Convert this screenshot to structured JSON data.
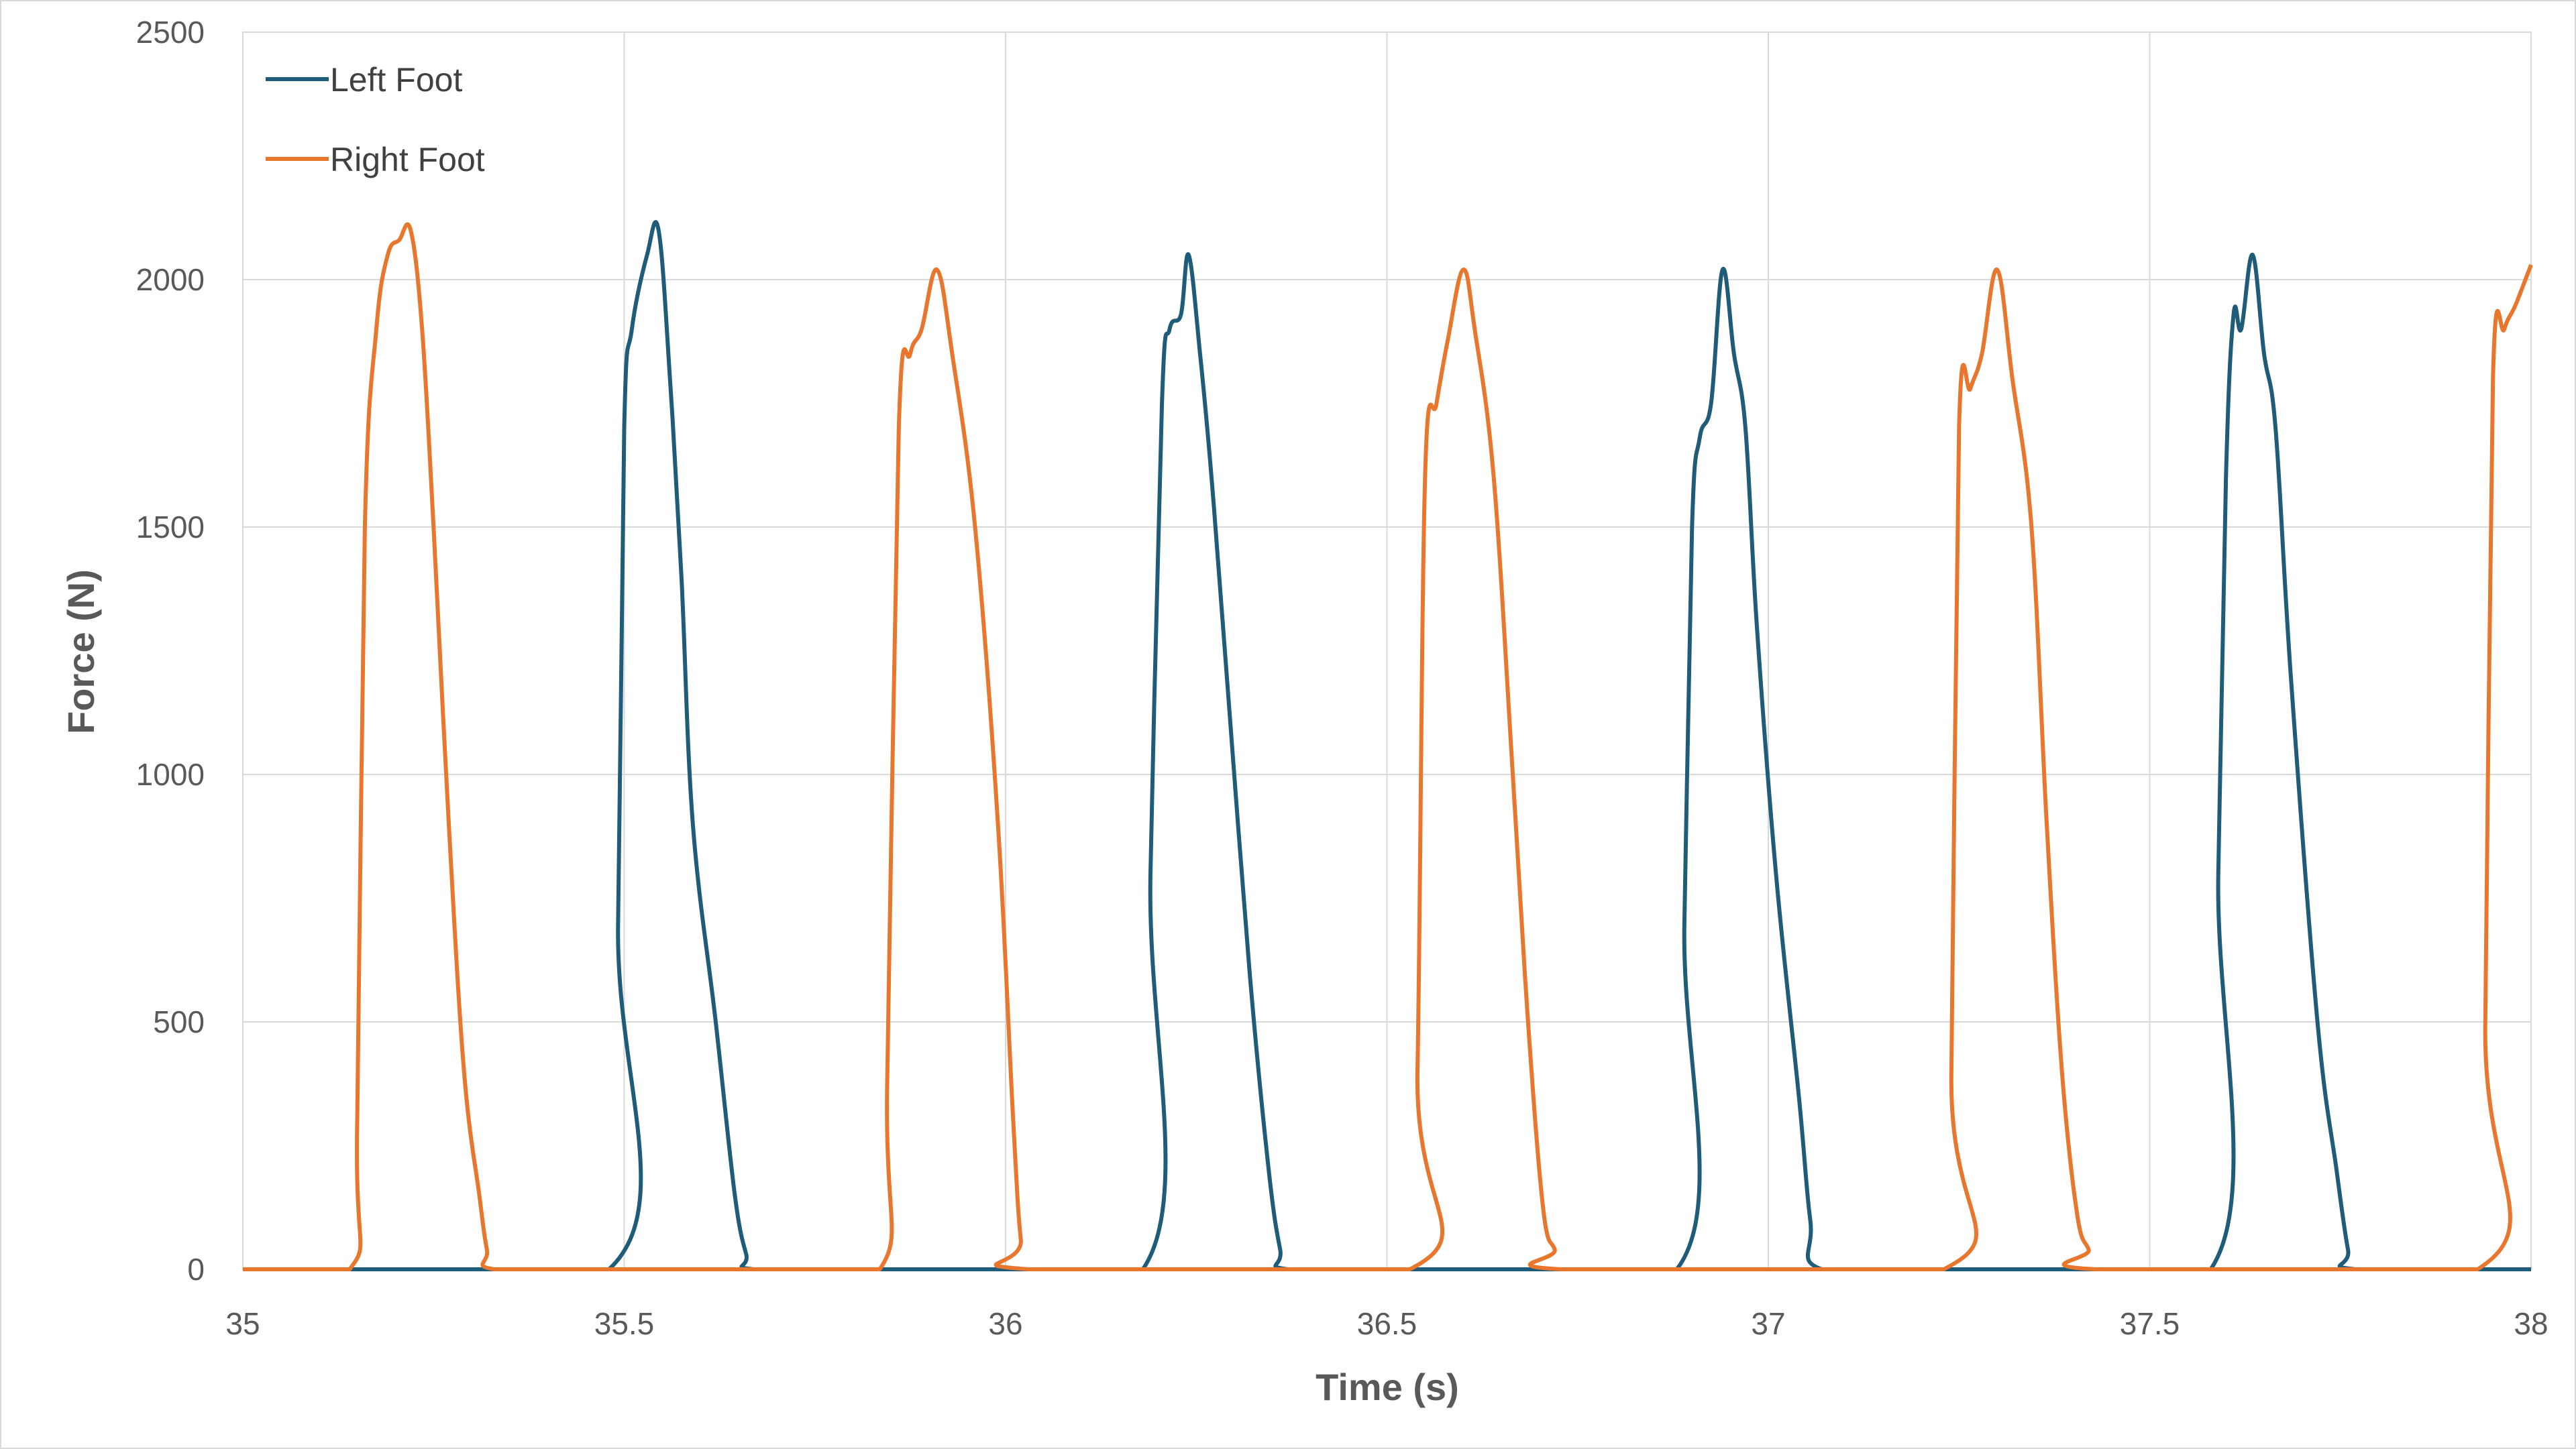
{
  "chart_data": {
    "type": "line",
    "xlabel": "Time (s)",
    "ylabel": "Force (N)",
    "xlim": [
      35,
      38
    ],
    "ylim": [
      0,
      2500
    ],
    "x_ticks": [
      "35",
      "35.5",
      "36",
      "36.5",
      "37",
      "37.5",
      "38"
    ],
    "y_ticks": [
      "0",
      "500",
      "1000",
      "1500",
      "2000",
      "2500"
    ],
    "grid": true,
    "legend_position": "top-left",
    "series": [
      {
        "name": "Left Foot",
        "color": "#1f5c7a",
        "x": [
          35.0,
          35.48,
          35.492,
          35.5,
          35.51,
          35.53,
          35.545,
          35.56,
          35.575,
          35.59,
          35.62,
          35.645,
          35.66,
          35.67,
          35.84,
          36.18,
          36.19,
          36.205,
          36.215,
          36.23,
          36.24,
          36.255,
          36.27,
          36.29,
          36.32,
          36.345,
          36.36,
          36.37,
          36.54,
          36.88,
          36.89,
          36.9,
          36.91,
          36.925,
          36.94,
          36.955,
          36.97,
          36.985,
          37.01,
          37.04,
          37.055,
          37.07,
          37.24,
          37.58,
          37.59,
          37.6,
          37.61,
          37.62,
          37.635,
          37.65,
          37.665,
          37.685,
          37.72,
          37.745,
          37.76,
          37.77,
          38.0
        ],
        "y": [
          0,
          0,
          700,
          1700,
          1900,
          2050,
          2100,
          1800,
          1400,
          900,
          500,
          150,
          30,
          0,
          0,
          0,
          800,
          1750,
          1900,
          1930,
          2050,
          1850,
          1600,
          1200,
          600,
          200,
          40,
          0,
          0,
          0,
          700,
          1500,
          1680,
          1750,
          2020,
          1850,
          1700,
          1300,
          800,
          350,
          100,
          0,
          0,
          0,
          800,
          1600,
          1930,
          1900,
          2050,
          1850,
          1700,
          1200,
          500,
          200,
          40,
          0,
          0
        ]
      },
      {
        "name": "Right Foot",
        "color": "#e8762d",
        "x": [
          35.0,
          35.14,
          35.15,
          35.16,
          35.175,
          35.19,
          35.205,
          35.22,
          35.235,
          35.25,
          35.27,
          35.29,
          35.31,
          35.32,
          35.33,
          35.49,
          35.5,
          35.51,
          35.525,
          35.54,
          35.56,
          35.575,
          35.6,
          35.625,
          35.64,
          35.66,
          35.67,
          35.835,
          35.845,
          35.86,
          35.875,
          35.89,
          35.91,
          35.93,
          35.96,
          35.99,
          36.01,
          36.02,
          36.03,
          36.53,
          36.54,
          36.55,
          36.565,
          36.58,
          36.6,
          36.615,
          36.64,
          36.665,
          36.685,
          36.705,
          36.72,
          36.73,
          37.23,
          37.24,
          37.25,
          37.265,
          37.28,
          37.3,
          37.32,
          37.345,
          37.365,
          37.385,
          37.405,
          37.42,
          37.43,
          37.93,
          37.94,
          37.95,
          37.965,
          37.98,
          38.0
        ],
        "y": [
          0,
          0,
          300,
          1500,
          1900,
          2050,
          2080,
          2100,
          1900,
          1500,
          900,
          400,
          150,
          40,
          0,
          0,
          0,
          0,
          0,
          0,
          0,
          0,
          0,
          0,
          0,
          0,
          0,
          0,
          400,
          1700,
          1850,
          1900,
          2020,
          1850,
          1500,
          900,
          300,
          60,
          0,
          0,
          400,
          1600,
          1750,
          1880,
          2020,
          1900,
          1600,
          1000,
          500,
          120,
          40,
          0,
          0,
          400,
          1700,
          1780,
          1850,
          2020,
          1800,
          1500,
          900,
          400,
          110,
          40,
          0,
          0,
          500,
          1800,
          1900,
          1950,
          2030
        ]
      }
    ]
  }
}
